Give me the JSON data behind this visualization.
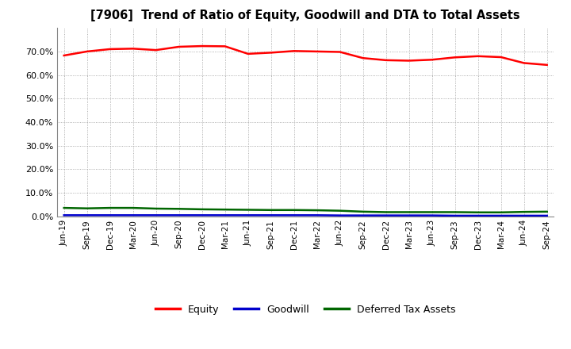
{
  "title": "[7906]  Trend of Ratio of Equity, Goodwill and DTA to Total Assets",
  "x_labels": [
    "Jun-19",
    "Sep-19",
    "Dec-19",
    "Mar-20",
    "Jun-20",
    "Sep-20",
    "Dec-20",
    "Mar-21",
    "Jun-21",
    "Sep-21",
    "Dec-21",
    "Mar-22",
    "Jun-22",
    "Sep-22",
    "Dec-22",
    "Mar-23",
    "Jun-23",
    "Sep-23",
    "Dec-23",
    "Mar-24",
    "Jun-24",
    "Sep-24"
  ],
  "equity": [
    0.683,
    0.7,
    0.71,
    0.712,
    0.706,
    0.72,
    0.723,
    0.722,
    0.69,
    0.695,
    0.702,
    0.7,
    0.698,
    0.672,
    0.663,
    0.661,
    0.665,
    0.675,
    0.68,
    0.676,
    0.651,
    0.643
  ],
  "goodwill": [
    0.005,
    0.005,
    0.005,
    0.005,
    0.005,
    0.005,
    0.005,
    0.005,
    0.005,
    0.005,
    0.005,
    0.005,
    0.004,
    0.004,
    0.004,
    0.004,
    0.004,
    0.003,
    0.003,
    0.003,
    0.003,
    0.003
  ],
  "dta": [
    0.036,
    0.034,
    0.036,
    0.036,
    0.033,
    0.032,
    0.03,
    0.029,
    0.028,
    0.027,
    0.027,
    0.026,
    0.024,
    0.02,
    0.018,
    0.018,
    0.018,
    0.018,
    0.017,
    0.017,
    0.019,
    0.02
  ],
  "equity_color": "#ff0000",
  "goodwill_color": "#0000cc",
  "dta_color": "#006600",
  "background_color": "#ffffff",
  "plot_bg_color": "#ffffff",
  "grid_color": "#999999",
  "ylim": [
    0.0,
    0.8
  ],
  "yticks": [
    0.0,
    0.1,
    0.2,
    0.3,
    0.4,
    0.5,
    0.6,
    0.7
  ],
  "legend_labels": [
    "Equity",
    "Goodwill",
    "Deferred Tax Assets"
  ],
  "line_width": 1.8
}
